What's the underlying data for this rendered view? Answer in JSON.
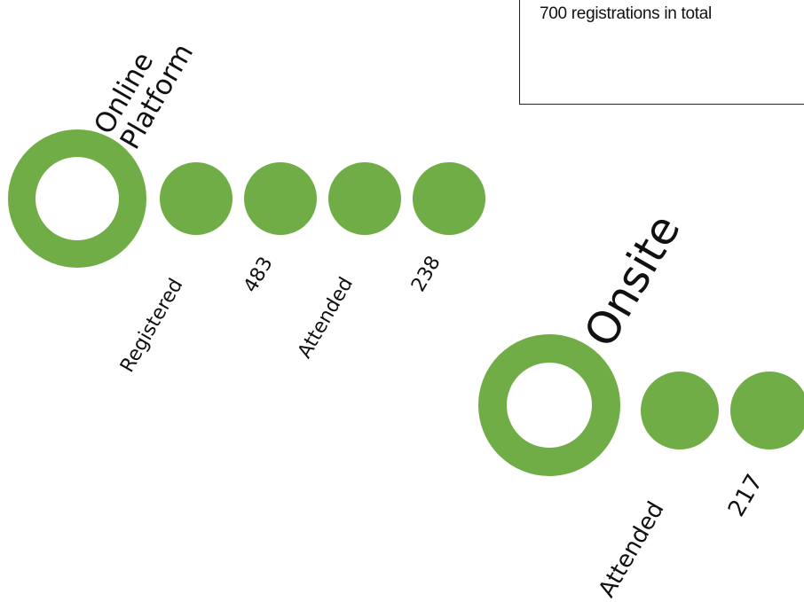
{
  "accent": "#70AD47",
  "infobox": {
    "text": "700 registrations in total"
  },
  "online": {
    "title_line1": "Online",
    "title_line2": "Platform",
    "labels": [
      "Registered",
      "483",
      "Attended",
      "238"
    ]
  },
  "onsite": {
    "title": "Onsite",
    "labels": [
      "Attended",
      "217"
    ]
  }
}
